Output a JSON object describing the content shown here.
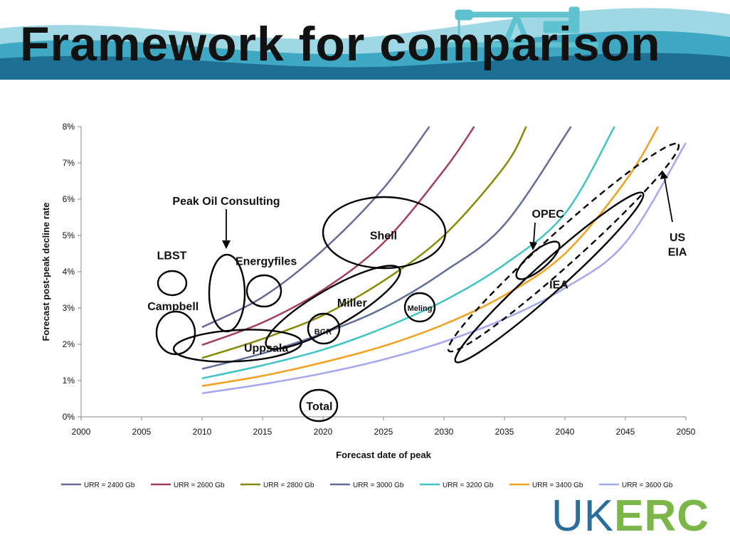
{
  "slide": {
    "title": "Framework for comparison",
    "logo_uk": "UK",
    "logo_erc": "ERC"
  },
  "chart_data": {
    "type": "line",
    "title": "",
    "xlabel": "Forecast date of peak",
    "ylabel": "Forecast post-peak decline rate",
    "xlim": [
      2000,
      2050
    ],
    "ylim": [
      0,
      8
    ],
    "x_ticks": [
      "2000",
      "2005",
      "2010",
      "2015",
      "2020",
      "2025",
      "2030",
      "2035",
      "2040",
      "2045",
      "2050"
    ],
    "y_ticks": [
      "0%",
      "1%",
      "2%",
      "3%",
      "4%",
      "5%",
      "6%",
      "7%",
      "8%"
    ],
    "grid": false,
    "legend_position": "bottom",
    "series": [
      {
        "name": "URR = 2400 Gb",
        "color": "#6a6a9a",
        "x": [
          2010,
          2015,
          2020,
          2025,
          2028.8
        ],
        "y": [
          2.47,
          3.3,
          4.6,
          6.3,
          8.0
        ]
      },
      {
        "name": "URR = 2600 Gb",
        "color": "#a43c62",
        "x": [
          2010,
          2015,
          2020,
          2025,
          2030,
          2032.5
        ],
        "y": [
          1.98,
          2.6,
          3.5,
          4.8,
          6.8,
          8.0
        ]
      },
      {
        "name": "URR = 2800 Gb",
        "color": "#878a05",
        "x": [
          2010,
          2015,
          2020,
          2025,
          2030,
          2035,
          2036.8
        ],
        "y": [
          1.62,
          2.15,
          2.8,
          3.75,
          5.0,
          6.9,
          8.0
        ]
      },
      {
        "name": "URR = 3000 Gb",
        "color": "#606d9a",
        "x": [
          2010,
          2015,
          2020,
          2025,
          2030,
          2035,
          2040.5
        ],
        "y": [
          1.32,
          1.75,
          2.3,
          3.0,
          4.0,
          5.3,
          8.0
        ]
      },
      {
        "name": "URR = 3200 Gb",
        "color": "#3ec4c4",
        "x": [
          2010,
          2015,
          2020,
          2025,
          2030,
          2035,
          2040,
          2044.1
        ],
        "y": [
          1.06,
          1.42,
          1.85,
          2.45,
          3.2,
          4.2,
          5.6,
          8.0
        ]
      },
      {
        "name": "URR = 3400 Gb",
        "color": "#f2a01e",
        "x": [
          2010,
          2015,
          2020,
          2025,
          2030,
          2035,
          2040,
          2045,
          2047.7
        ],
        "y": [
          0.85,
          1.13,
          1.5,
          1.95,
          2.55,
          3.35,
          4.5,
          6.5,
          8.0
        ]
      },
      {
        "name": "URR = 3600 Gb",
        "color": "#a3a6f0",
        "x": [
          2010,
          2015,
          2020,
          2025,
          2030,
          2035,
          2040,
          2045,
          2050
        ],
        "y": [
          0.65,
          0.9,
          1.2,
          1.58,
          2.07,
          2.7,
          3.55,
          4.8,
          7.55
        ]
      }
    ],
    "annotations": [
      {
        "label": "Peak Oil Consulting",
        "x": 2012,
        "y": 5.95
      },
      {
        "label": "LBST",
        "x": 2007.5,
        "y": 4.45
      },
      {
        "label": "Energyfiles",
        "x": 2015.3,
        "y": 4.3
      },
      {
        "label": "Campbell",
        "x": 2007.6,
        "y": 3.05
      },
      {
        "label": "Uppsala",
        "x": 2015.3,
        "y": 1.9
      },
      {
        "label": "Miller",
        "x": 2022.4,
        "y": 3.15
      },
      {
        "label": "BGR",
        "x": 2020,
        "y": 2.35
      },
      {
        "label": "Shell",
        "x": 2025,
        "y": 5.0
      },
      {
        "label": "Meling",
        "x": 2028,
        "y": 3.0
      },
      {
        "label": "OPEC",
        "x": 2038.6,
        "y": 5.6
      },
      {
        "label": "IEA",
        "x": 2039.5,
        "y": 3.65
      },
      {
        "label": "US",
        "x": 2049.3,
        "y": 4.95
      },
      {
        "label": "EIA",
        "x": 2049.3,
        "y": 4.55
      },
      {
        "label": "Total",
        "x": 2019.7,
        "y": 0.3
      }
    ]
  }
}
